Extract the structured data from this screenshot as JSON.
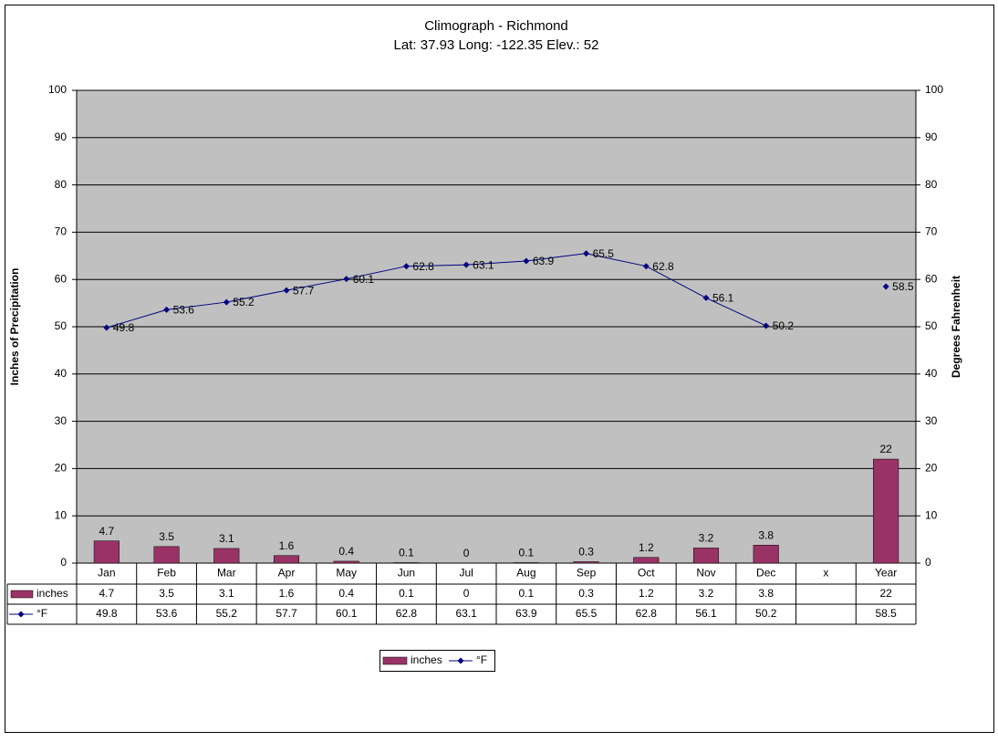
{
  "chart_data": {
    "type": "bar-line",
    "title": "Climograph - Richmond",
    "subtitle": "Lat: 37.93 Long: -122.35 Elev.: 52",
    "ylabel": "Inches of Precipitation",
    "y2label": "Degrees Fahrenheit",
    "categories": [
      "Jan",
      "Feb",
      "Mar",
      "Apr",
      "May",
      "Jun",
      "Jul",
      "Aug",
      "Sep",
      "Oct",
      "Nov",
      "Dec",
      "x",
      "Year"
    ],
    "series": [
      {
        "name": "inches",
        "type": "bar",
        "color": "#993366",
        "values": [
          4.7,
          3.5,
          3.1,
          1.6,
          0.4,
          0.1,
          0,
          0.1,
          0.3,
          1.2,
          3.2,
          3.8,
          null,
          22
        ]
      },
      {
        "name": "°F",
        "type": "line",
        "axis": "y2",
        "color": "#000080",
        "values": [
          49.8,
          53.6,
          55.2,
          57.7,
          60.1,
          62.8,
          63.1,
          63.9,
          65.5,
          62.8,
          56.1,
          50.2,
          null,
          58.5
        ]
      }
    ],
    "ylim": [
      0,
      100
    ],
    "yticks": [
      0,
      10,
      20,
      30,
      40,
      50,
      60,
      70,
      80,
      90,
      100
    ],
    "y2lim": [
      0,
      100
    ],
    "y2ticks": [
      0,
      10,
      20,
      30,
      40,
      50,
      60,
      70,
      80,
      90,
      100
    ],
    "grid": true,
    "legend": "bottom",
    "data_table": true
  }
}
